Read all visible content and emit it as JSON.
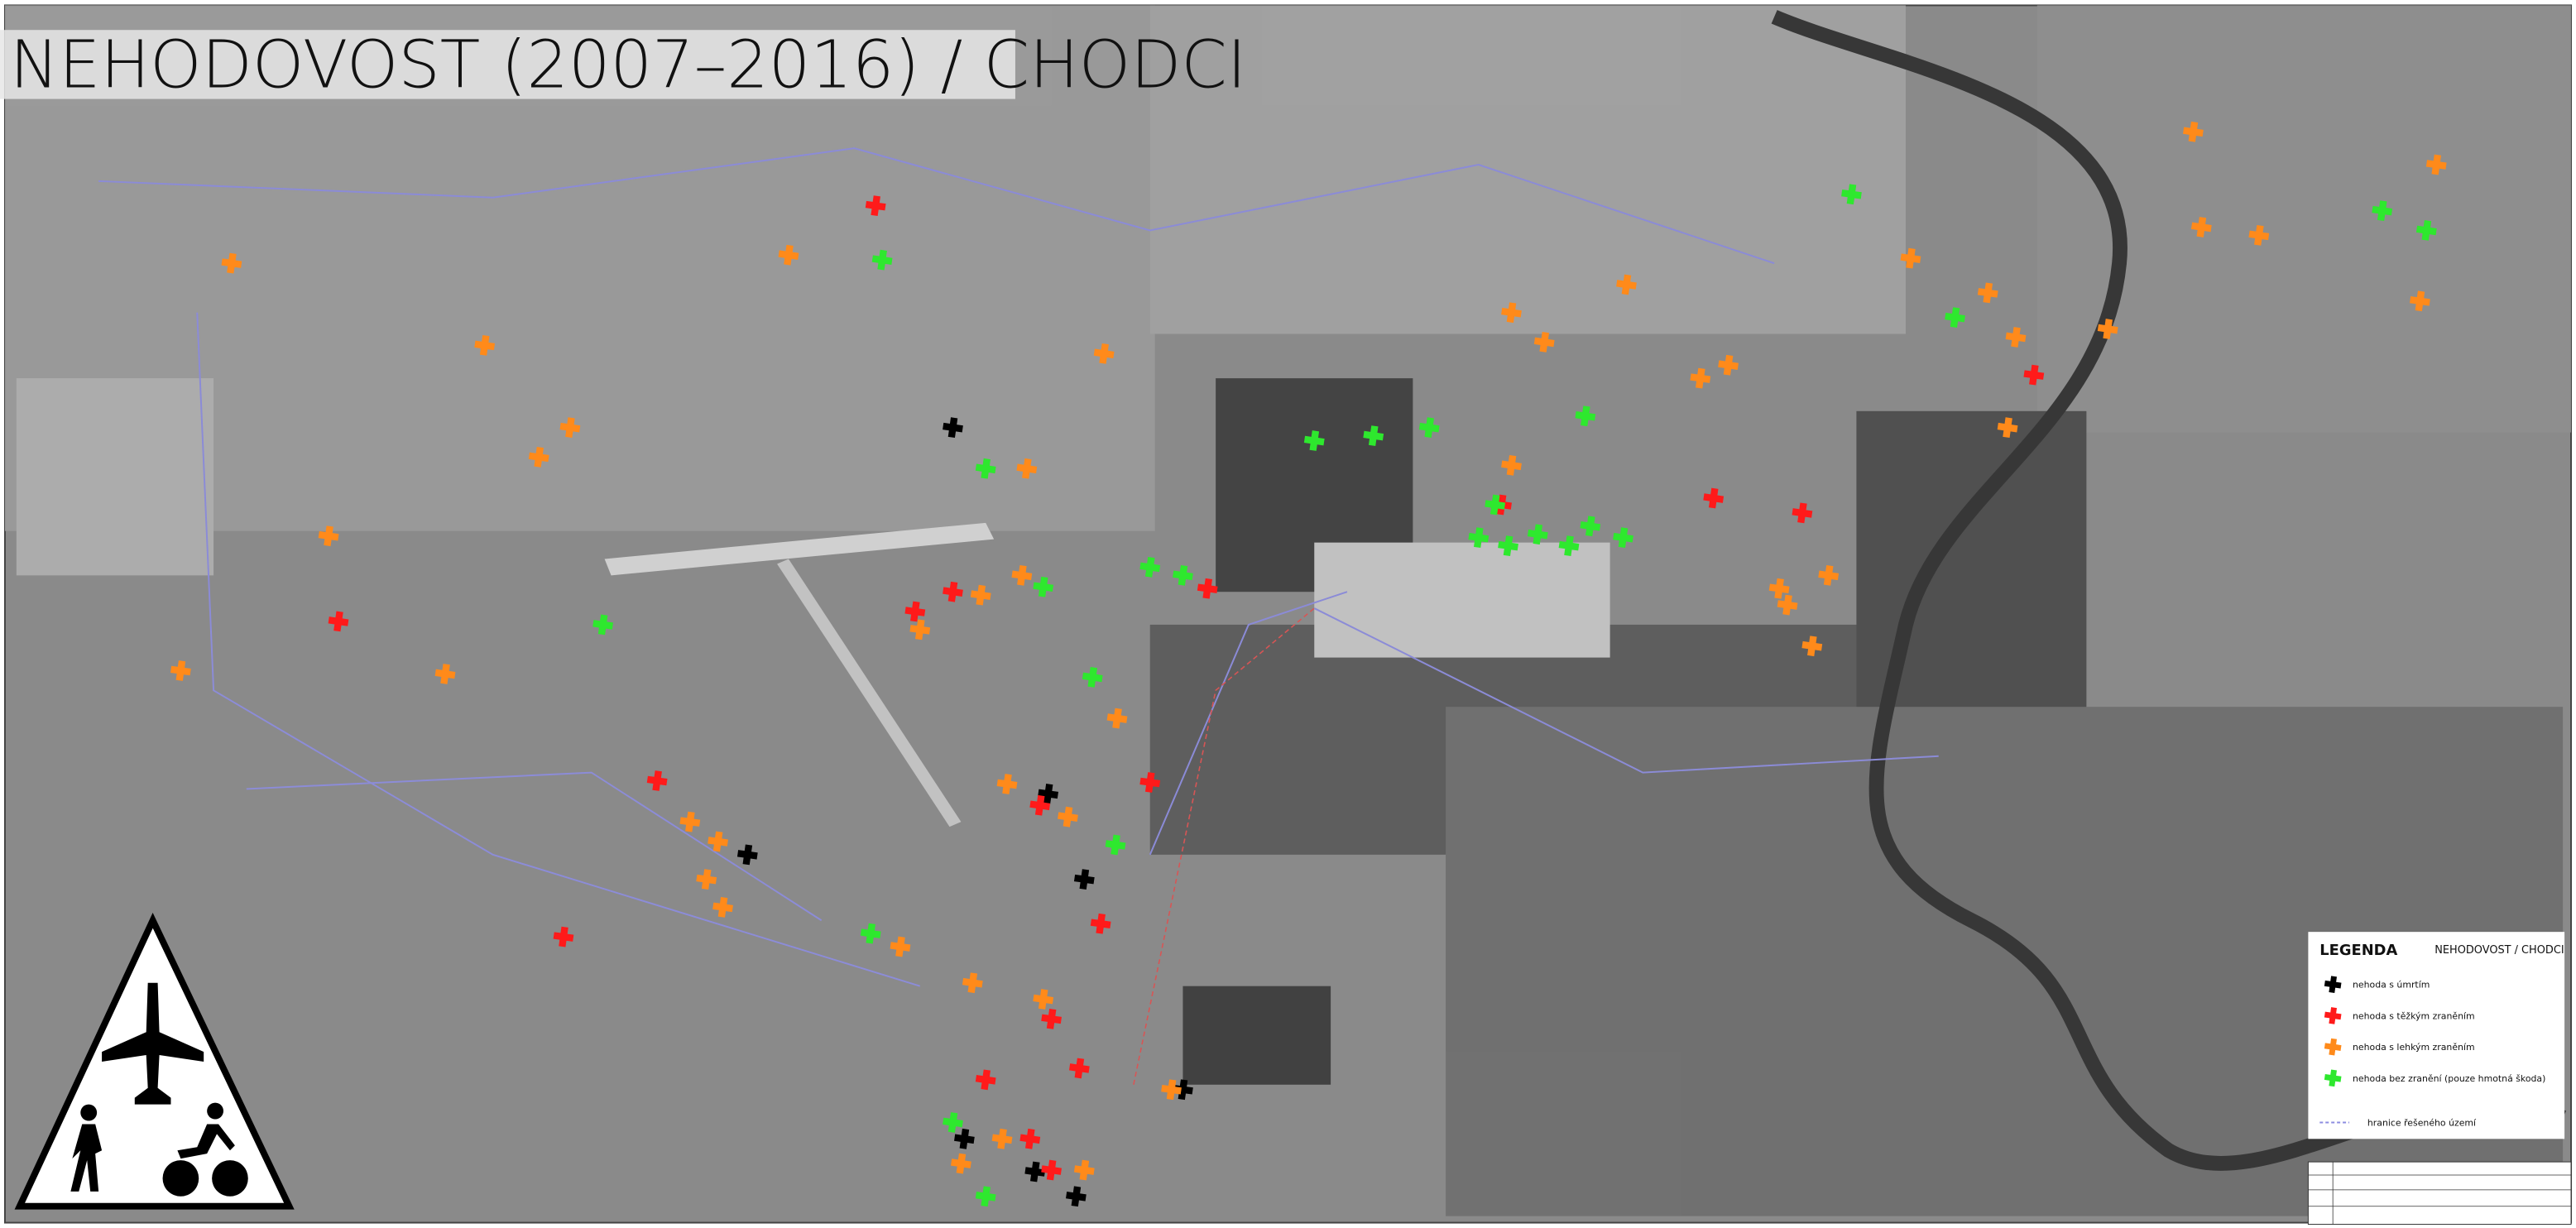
{
  "title": "NEHODOVOST (2007–2016) / CHODCI",
  "legend": {
    "title": "LEGENDA",
    "subtitle": "NEHODOVOST / CHODCI",
    "items": [
      {
        "label": "nehoda s úmrtím",
        "color": "#000000"
      },
      {
        "label": "nehoda s těžkým zraněním",
        "color": "#ff1a1a"
      },
      {
        "label": "nehoda s lehkým zraněním",
        "color": "#ff8a1a"
      },
      {
        "label": "nehoda bez zranění (pouze hmotná škoda)",
        "color": "#2ee82e"
      }
    ],
    "boundary": "hranice řešeného území"
  }
}
